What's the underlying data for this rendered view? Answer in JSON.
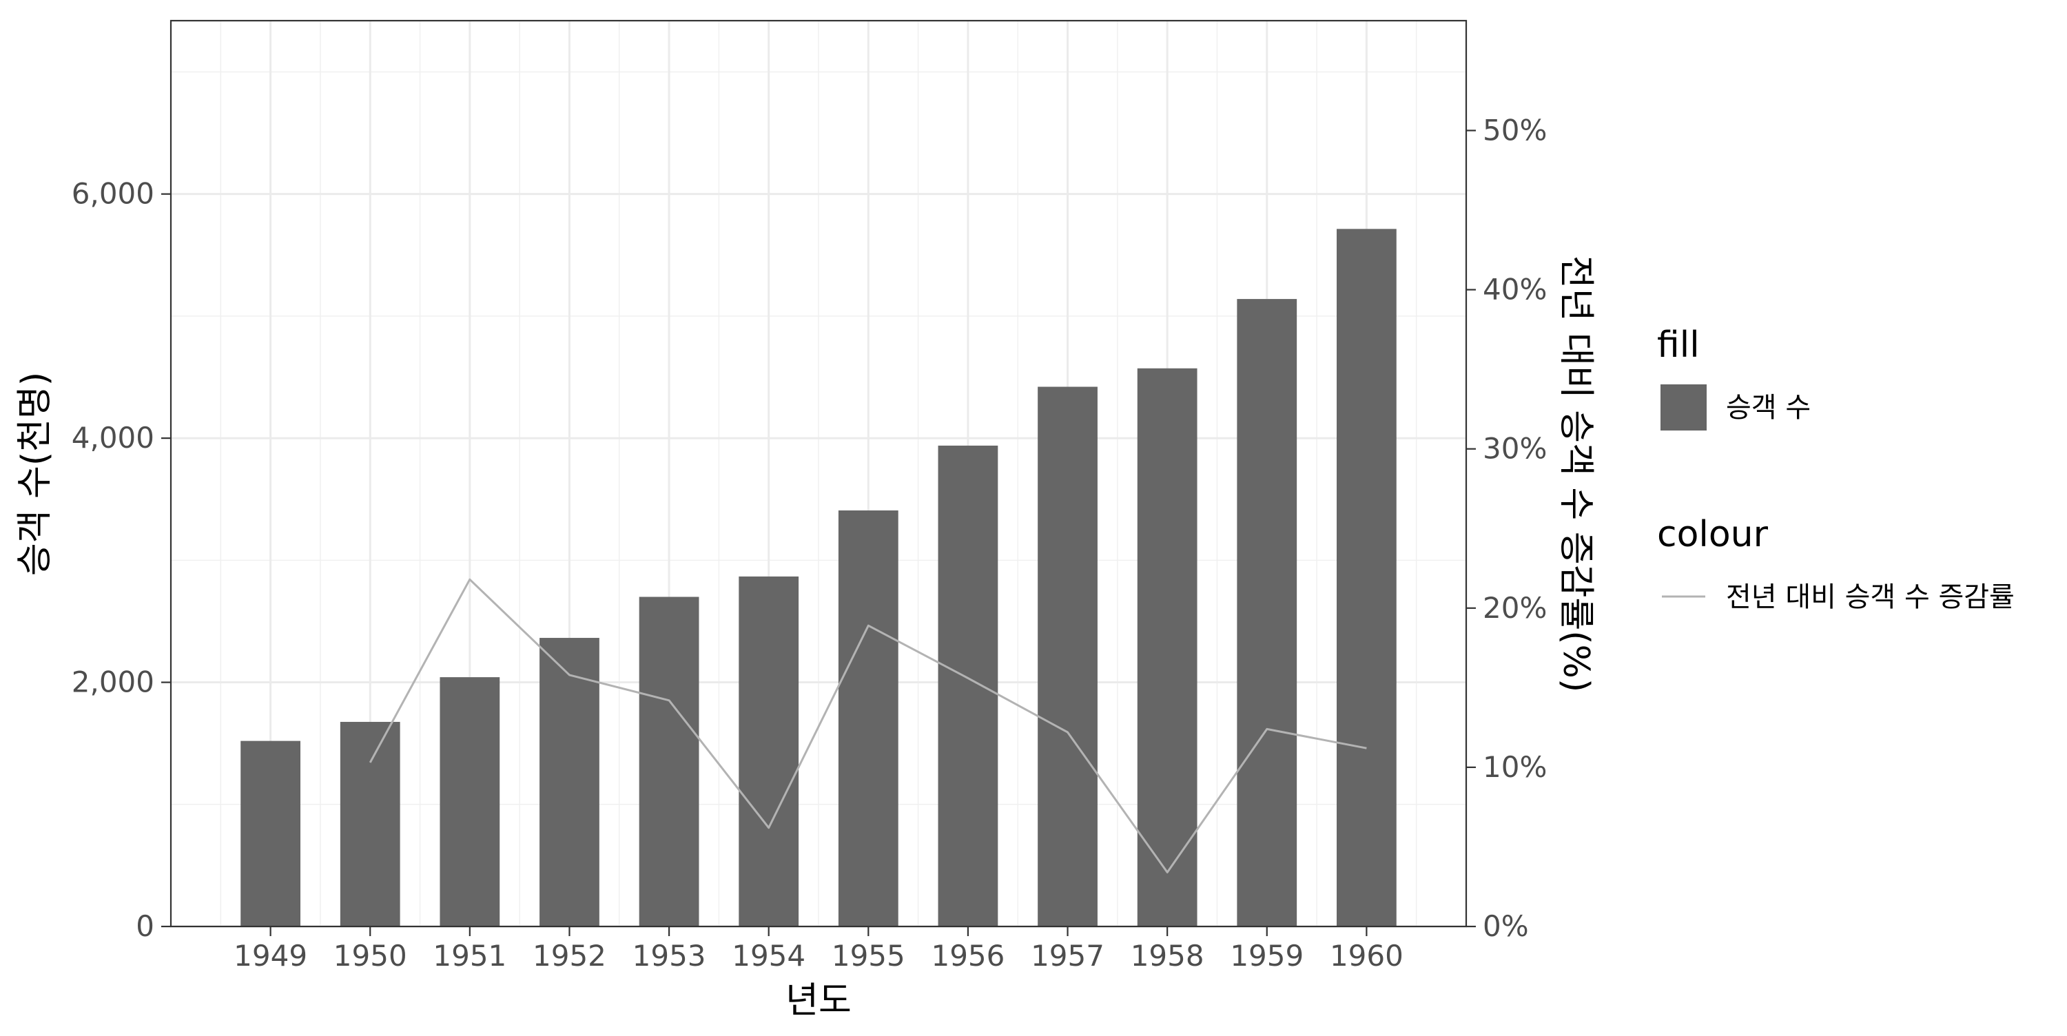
{
  "chart_data": {
    "type": "bar",
    "categories": [
      "1949",
      "1950",
      "1951",
      "1952",
      "1953",
      "1954",
      "1955",
      "1956",
      "1957",
      "1958",
      "1959",
      "1960"
    ],
    "series": [
      {
        "name": "승객 수",
        "kind": "bar",
        "values": [
          1520,
          1676,
          2042,
          2364,
          2700,
          2867,
          3408,
          3939,
          4421,
          4572,
          5140,
          5714
        ],
        "color": "#666666"
      },
      {
        "name": "전년 대비 승객 수 증감률",
        "kind": "line",
        "axis": "secondary",
        "values": [
          null,
          10.3,
          21.8,
          15.8,
          14.2,
          6.2,
          18.9,
          15.6,
          12.2,
          3.4,
          12.4,
          11.2
        ],
        "color": "#b3b3b3"
      }
    ],
    "xlabel": "년도",
    "ylabel": "승객 수(천명)",
    "ylabel_right": "전년 대비 승객 수 증감률(%)",
    "ylim": [
      0,
      7420
    ],
    "ylim_right": [
      0,
      56.9
    ],
    "y_ticks": [
      0,
      2000,
      4000,
      6000
    ],
    "y_tick_labels": [
      "0",
      "2,000",
      "4,000",
      "6,000"
    ],
    "y_right_ticks": [
      0,
      10,
      20,
      30,
      40,
      50
    ],
    "y_right_tick_labels": [
      "0%",
      "10%",
      "20%",
      "30%",
      "40%",
      "50%"
    ],
    "grid": true,
    "legend": {
      "placement": "right",
      "groups": [
        {
          "title": "fill",
          "label": "승객 수",
          "kind": "fill"
        },
        {
          "title": "colour",
          "label": "전년 대비 승객 수 증감률",
          "kind": "line"
        }
      ]
    }
  }
}
